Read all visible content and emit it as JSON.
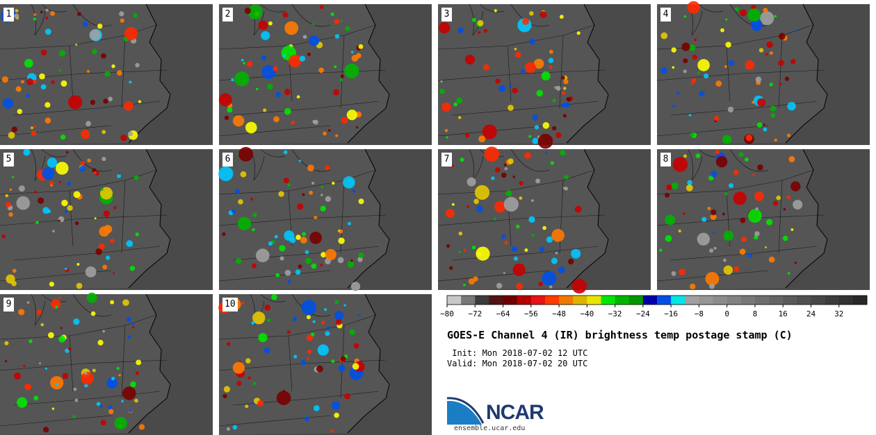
{
  "panels": [
    {
      "label": "1"
    },
    {
      "label": "2"
    },
    {
      "label": "3"
    },
    {
      "label": "4"
    },
    {
      "label": "5"
    },
    {
      "label": "6"
    },
    {
      "label": "7"
    },
    {
      "label": "8"
    },
    {
      "label": "9"
    },
    {
      "label": "10"
    }
  ],
  "colorbar": {
    "ticks": [
      "−80",
      "−72",
      "−64",
      "−56",
      "−48",
      "−40",
      "−32",
      "−24",
      "−16",
      "−8",
      "0",
      "8",
      "16",
      "24",
      "32"
    ],
    "colors": [
      "#c8c8c8",
      "#787878",
      "#3c3c3c",
      "#501414",
      "#6e0000",
      "#b40000",
      "#e61414",
      "#ff3c00",
      "#f07800",
      "#dcb400",
      "#e6e600",
      "#00e600",
      "#00b400",
      "#009600",
      "#0000aa",
      "#0050e6",
      "#00e6e6",
      "#a0a0a0",
      "#969696",
      "#8c8c8c",
      "#828282",
      "#787878",
      "#6e6e6e",
      "#646464",
      "#5a5a5a",
      "#505050",
      "#464646",
      "#3c3c3c",
      "#323232",
      "#282828"
    ]
  },
  "title": "GOES-E Channel 4 (IR) brightness temp postage stamp (C)",
  "init": " Init: Mon 2018-07-02 12 UTC",
  "valid": "Valid: Mon 2018-07-02 20 UTC",
  "logo": {
    "text": "NCAR",
    "website": "ensemble.ucar.edu"
  },
  "colors": {
    "ocean": "#4a4a4a",
    "land": "#555555",
    "border": "#000000"
  }
}
